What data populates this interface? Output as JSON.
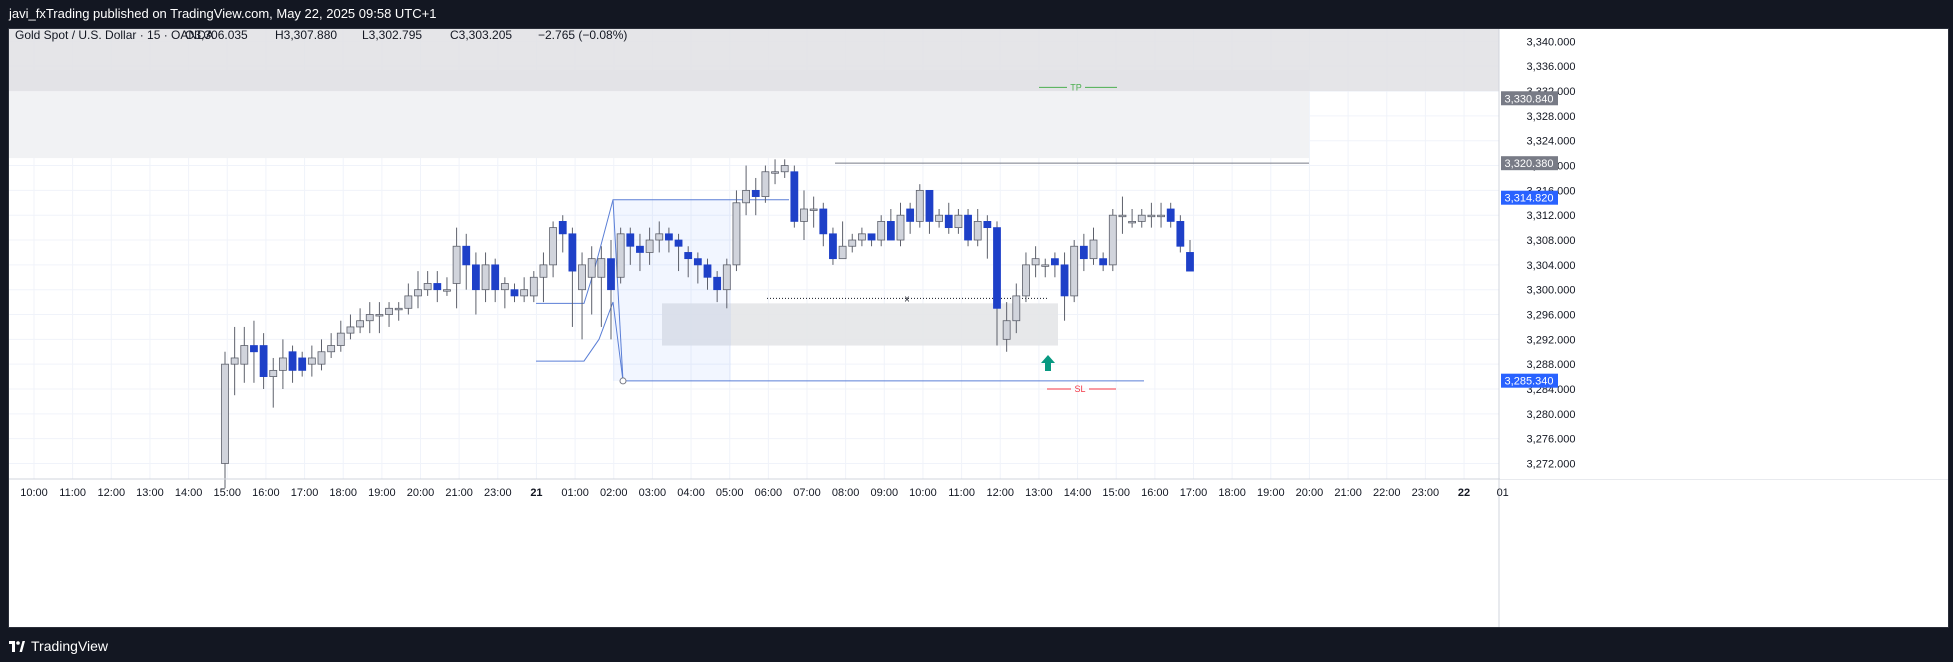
{
  "header": {
    "published": "javi_fxTrading published on TradingView.com, May 22, 2025 09:58 UTC+1"
  },
  "footer": {
    "brand": "TradingView"
  },
  "legend": {
    "symbol": "Gold Spot / U.S. Dollar · 15 · OANDA",
    "open": "O3,306.035",
    "high": "H3,307.880",
    "low": "L3,302.795",
    "close": "C3,303.205",
    "change": "−2.765 (−0.08%)"
  },
  "colors": {
    "bull": "#d1d4dc",
    "bear": "#1e40c8",
    "accent": "#2962ff",
    "tp": "#4caf50",
    "sl": "#f23645",
    "arrow": "#089981"
  },
  "price_axis": {
    "ticks": [
      "3,340.000",
      "3,336.000",
      "3,332.000",
      "3,328.000",
      "3,324.000",
      "3,320.000",
      "3,316.000",
      "3,312.000",
      "3,308.000",
      "3,304.000",
      "3,300.000",
      "3,296.000",
      "3,292.000",
      "3,288.000",
      "3,284.000",
      "3,280.000",
      "3,276.000",
      "3,272.000"
    ],
    "flags": [
      {
        "text": "3,330.840",
        "style": "gray"
      },
      {
        "text": "3,320.380",
        "style": "gray"
      },
      {
        "text": "3,314.820",
        "style": "blue"
      },
      {
        "text": "3,285.340",
        "style": "blue"
      }
    ]
  },
  "time_axis": {
    "labels": [
      "10:00",
      "11:00",
      "12:00",
      "13:00",
      "14:00",
      "15:00",
      "16:00",
      "17:00",
      "18:00",
      "19:00",
      "20:00",
      "21:00",
      "23:00",
      "21",
      "01:00",
      "02:00",
      "03:00",
      "04:00",
      "05:00",
      "06:00",
      "07:00",
      "08:00",
      "09:00",
      "10:00",
      "11:00",
      "12:00",
      "13:00",
      "14:00",
      "15:00",
      "16:00",
      "17:00",
      "18:00",
      "19:00",
      "20:00",
      "21:00",
      "22:00",
      "23:00",
      "22",
      "01"
    ]
  },
  "annotations": {
    "tp": "TP",
    "sl": "SL",
    "x_mark": "x"
  },
  "chart_data": {
    "type": "candlestick",
    "title": "Gold Spot / U.S. Dollar · 15 · OANDA",
    "xlabel": "",
    "ylabel": "",
    "ylim": [
      3269.5,
      3342
    ],
    "grid": true,
    "interval_minutes": 15,
    "time_range": [
      "May 20 10:00",
      "May 22 01:00"
    ],
    "candles": [
      [
        3272,
        3288,
        3268,
        3290
      ],
      [
        3288,
        3289,
        3283,
        3294
      ],
      [
        3288,
        3291,
        3285,
        3294
      ],
      [
        3291,
        3290,
        3285,
        3295
      ],
      [
        3291,
        3286,
        3284,
        3293
      ],
      [
        3286,
        3287,
        3281,
        3289
      ],
      [
        3287,
        3289,
        3284,
        3292
      ],
      [
        3290,
        3287,
        3285,
        3291
      ],
      [
        3289,
        3287,
        3286,
        3290
      ],
      [
        3288,
        3289,
        3286,
        3291
      ],
      [
        3288,
        3290,
        3287,
        3292
      ],
      [
        3290,
        3291,
        3289,
        3293
      ],
      [
        3291,
        3293,
        3290,
        3295
      ],
      [
        3293,
        3294,
        3292,
        3296
      ],
      [
        3294,
        3295,
        3293,
        3297
      ],
      [
        3295,
        3296,
        3293,
        3298
      ],
      [
        3296,
        3296,
        3293,
        3298
      ],
      [
        3296,
        3297,
        3294,
        3298
      ],
      [
        3297,
        3297,
        3295,
        3298
      ],
      [
        3297,
        3299,
        3296,
        3301
      ],
      [
        3299,
        3300,
        3297,
        3303
      ],
      [
        3300,
        3301,
        3299,
        3303
      ],
      [
        3301,
        3300,
        3298,
        3303
      ],
      [
        3300,
        3300,
        3299,
        3302
      ],
      [
        3301,
        3307,
        3297,
        3310
      ],
      [
        3307,
        3304,
        3300,
        3309
      ],
      [
        3304,
        3300,
        3296,
        3306
      ],
      [
        3300,
        3304,
        3298,
        3306
      ],
      [
        3304,
        3300,
        3298,
        3305
      ],
      [
        3300,
        3301,
        3297,
        3302
      ],
      [
        3300,
        3299,
        3298,
        3301
      ],
      [
        3299,
        3300,
        3298,
        3302
      ],
      [
        3299,
        3302,
        3298,
        3303
      ],
      [
        3302,
        3304,
        3298,
        3306
      ],
      [
        3304,
        3310,
        3302,
        3311
      ],
      [
        3311,
        3309,
        3306,
        3312
      ],
      [
        3309,
        3303,
        3294,
        3310
      ],
      [
        3300,
        3304,
        3292,
        3306
      ],
      [
        3302,
        3305,
        3296,
        3307
      ],
      [
        3302,
        3305,
        3294,
        3307
      ],
      [
        3305,
        3300,
        3292,
        3308
      ],
      [
        3302,
        3309,
        3301,
        3310
      ],
      [
        3309,
        3307,
        3304,
        3310
      ],
      [
        3307,
        3306,
        3303,
        3309
      ],
      [
        3306,
        3308,
        3304,
        3310
      ],
      [
        3308,
        3309,
        3306,
        3311
      ],
      [
        3309,
        3308,
        3306,
        3310
      ],
      [
        3308,
        3307,
        3303,
        3309
      ],
      [
        3306,
        3305,
        3302,
        3307
      ],
      [
        3305,
        3304,
        3301,
        3306
      ],
      [
        3304,
        3302,
        3300,
        3305
      ],
      [
        3302,
        3300,
        3298,
        3303
      ],
      [
        3300,
        3304,
        3297,
        3305
      ],
      [
        3304,
        3314,
        3303,
        3316
      ],
      [
        3314,
        3316,
        3312,
        3320
      ],
      [
        3316,
        3315,
        3312,
        3318
      ],
      [
        3315,
        3319,
        3314,
        3320
      ],
      [
        3319,
        3319,
        3317,
        3321
      ],
      [
        3319,
        3320,
        3318,
        3321
      ],
      [
        3319,
        3311,
        3310,
        3320
      ],
      [
        3311,
        3313,
        3308,
        3316
      ],
      [
        3313,
        3313,
        3310,
        3315
      ],
      [
        3313,
        3309,
        3307,
        3314
      ],
      [
        3309,
        3305,
        3304,
        3310
      ],
      [
        3305,
        3307,
        3305,
        3311
      ],
      [
        3307,
        3308,
        3306,
        3309
      ],
      [
        3308,
        3309,
        3307,
        3310
      ],
      [
        3309,
        3308,
        3307,
        3309
      ],
      [
        3308,
        3311,
        3307,
        3312
      ],
      [
        3311,
        3308,
        3308,
        3313
      ],
      [
        3308,
        3312,
        3307,
        3314
      ],
      [
        3313,
        3311,
        3309,
        3314
      ],
      [
        3311,
        3316,
        3310,
        3317
      ],
      [
        3316,
        3311,
        3309,
        3316
      ],
      [
        3311,
        3312,
        3310,
        3313
      ],
      [
        3312,
        3310,
        3309,
        3314
      ],
      [
        3310,
        3312,
        3309,
        3313
      ],
      [
        3312,
        3308,
        3307,
        3313
      ],
      [
        3308,
        3311,
        3307,
        3313
      ],
      [
        3311,
        3310,
        3305,
        3312
      ],
      [
        3310,
        3297,
        3291,
        3311
      ],
      [
        3292,
        3295,
        3290,
        3298
      ],
      [
        3295,
        3299,
        3293,
        3301
      ],
      [
        3299,
        3304,
        3298,
        3306
      ],
      [
        3304,
        3305,
        3302,
        3307
      ],
      [
        3304,
        3304,
        3302,
        3305
      ],
      [
        3305,
        3304,
        3302,
        3306
      ],
      [
        3304,
        3299,
        3295,
        3306
      ],
      [
        3299,
        3307,
        3298,
        3308
      ],
      [
        3307,
        3305,
        3303,
        3309
      ],
      [
        3305,
        3308,
        3304,
        3310
      ],
      [
        3305,
        3304,
        3303,
        3306
      ],
      [
        3304,
        3312,
        3303,
        3313
      ],
      [
        3312,
        3312,
        3309,
        3315
      ],
      [
        3311,
        3311,
        3310,
        3313
      ],
      [
        3311,
        3312,
        3310,
        3313
      ],
      [
        3312,
        3312,
        3310,
        3314
      ],
      [
        3312,
        3312,
        3310,
        3314
      ],
      [
        3313,
        3311,
        3310,
        3314
      ],
      [
        3311,
        3307,
        3306,
        3312
      ],
      [
        3306,
        3303,
        3303,
        3308
      ]
    ],
    "levels": {
      "tp": 3332.6,
      "sl": 3284.0,
      "upper_line": 3320.4,
      "lower_line": 3285.3,
      "x_line": 3298.6
    },
    "zones": [
      {
        "from": 3291.0,
        "to": 3297.8
      },
      {
        "from": 3321.2,
        "to": 3335.4
      }
    ]
  }
}
